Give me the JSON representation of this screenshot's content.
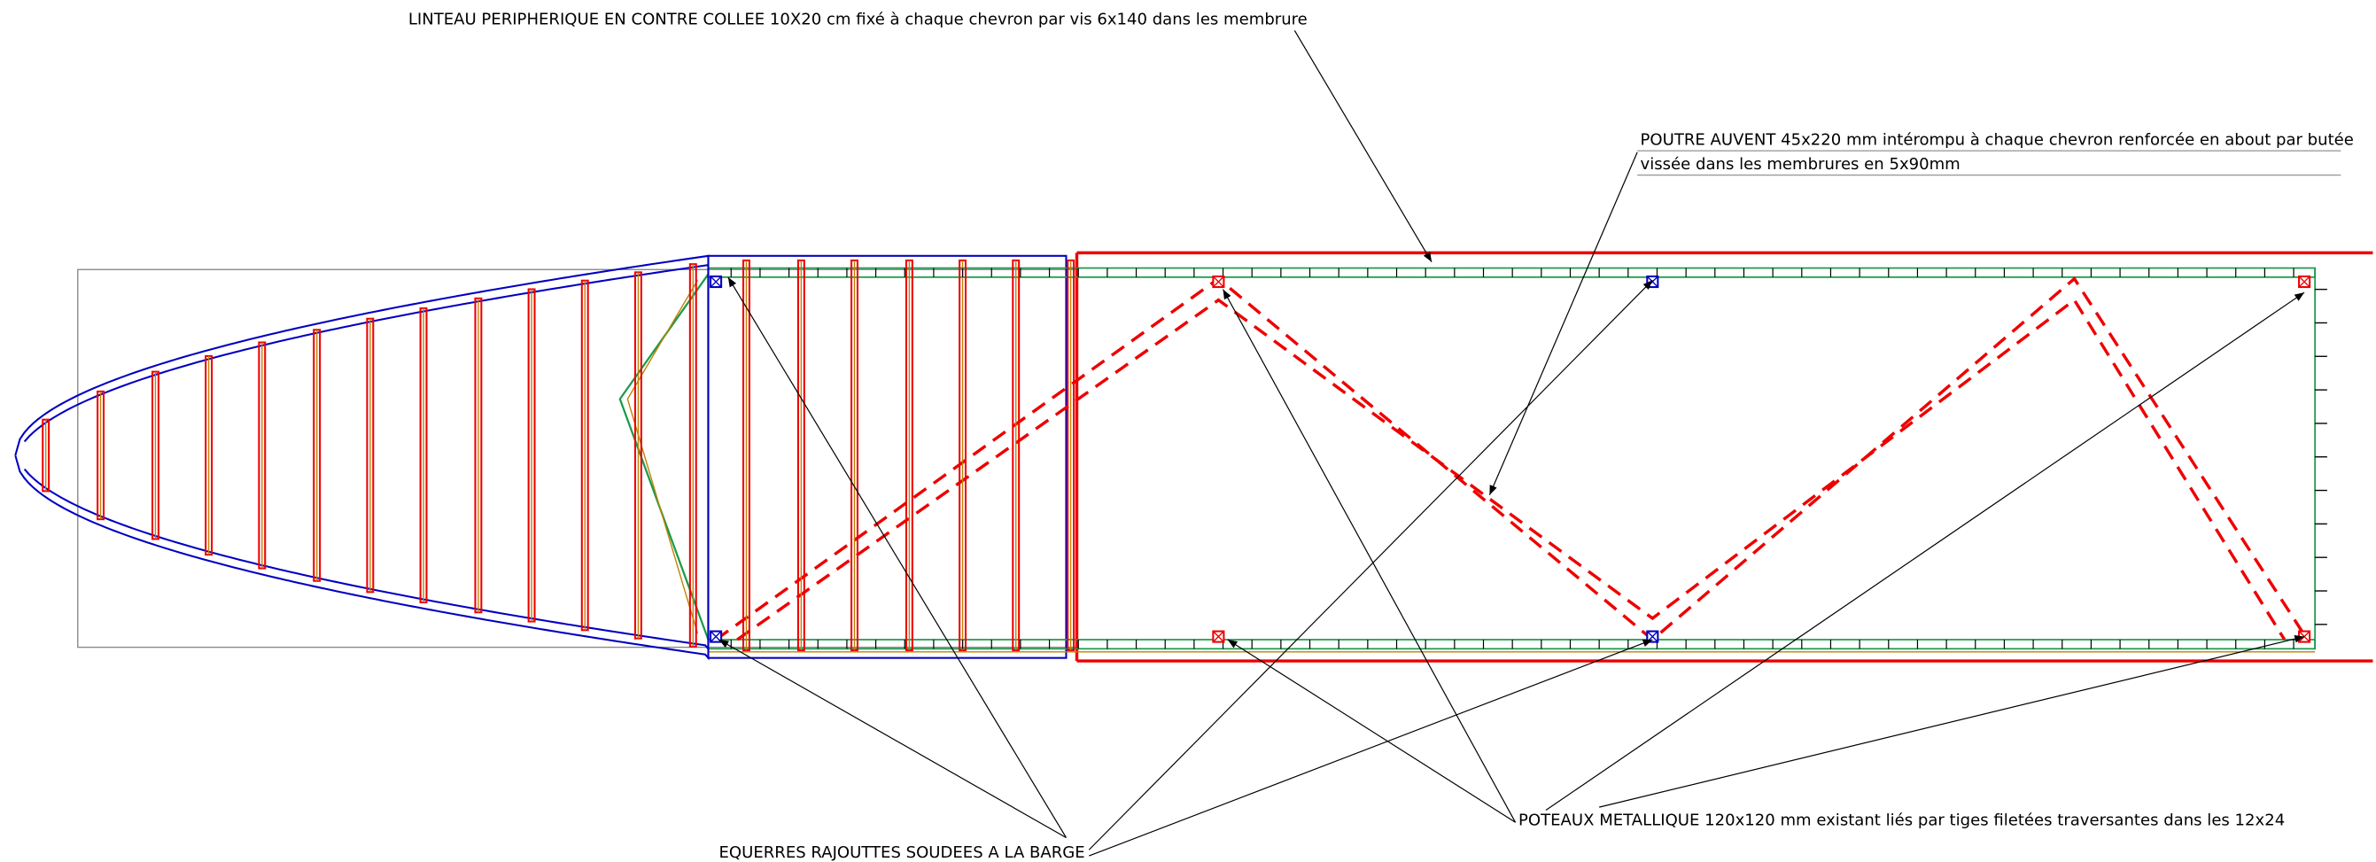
{
  "annotations": {
    "linteau": "LINTEAU PERIPHERIQUE EN CONTRE COLLEE 10X20 cm fixé à chaque chevron par vis 6x140 dans les membrure",
    "poutre": {
      "line1": "POUTRE AUVENT 45x220 mm intérompu à chaque chevron renforcée en about par butée",
      "line2": "vissée dans les membrures en 5x90mm"
    },
    "equerres": "EQUERRES RAJOUTTES SOUDEES A LA BARGE",
    "poteaux": "POTEAUX METALLIQUE 120x120 mm  existant liés par tiges filetées traversantes dans les 12x24"
  }
}
